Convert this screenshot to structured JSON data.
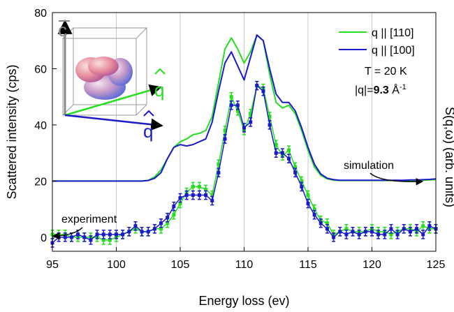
{
  "chart_data": {
    "type": "line",
    "x_label": "Energy loss (ev)",
    "y_label": "Scattered intensity (cps)",
    "y2_label": "S(q,ω) (arb. units)",
    "xlim": [
      95,
      125
    ],
    "ylim": [
      -5,
      80
    ],
    "xticks": [
      95,
      100,
      105,
      110,
      115,
      120,
      125
    ],
    "yticks": [
      0,
      20,
      40,
      60,
      80
    ],
    "grid": true,
    "legend": "upper right",
    "annotations": {
      "simulation": "simulation",
      "experiment": "experiment",
      "temperature": "T = 20 K",
      "q_prefix": "|q|=",
      "q_value": "9.3",
      "q_unit": " Å",
      "q_exp": "-1"
    },
    "inset": {
      "c": "c",
      "q1": "q",
      "q2": "q"
    },
    "x": [
      95,
      95.5,
      96,
      96.5,
      97,
      97.5,
      98,
      98.5,
      99,
      99.5,
      100,
      100.5,
      101,
      101.5,
      102,
      102.5,
      103,
      103.5,
      104,
      104.5,
      105,
      105.5,
      106,
      106.5,
      107,
      107.5,
      108,
      108.5,
      109,
      109.5,
      110,
      110.5,
      111,
      111.5,
      112,
      112.5,
      113,
      113.5,
      114,
      114.5,
      115,
      115.5,
      116,
      116.5,
      117,
      117.5,
      118,
      118.5,
      119,
      119.5,
      120,
      120.5,
      121,
      121.5,
      122,
      122.5,
      123,
      123.5,
      124,
      124.5,
      125
    ],
    "series": [
      {
        "name": "q || [110]",
        "color": "#22e01c",
        "simulation": [
          20,
          20,
          20,
          20,
          20,
          20,
          20,
          20,
          20,
          20,
          20,
          20,
          20,
          20,
          20,
          20.3,
          21.5,
          24,
          28,
          32,
          34,
          35,
          36.5,
          37,
          38,
          43,
          55,
          67,
          71,
          67,
          62,
          66,
          72,
          70,
          58,
          48,
          46,
          47,
          44,
          38,
          31,
          25,
          22,
          20.8,
          20.3,
          20.2,
          20.2,
          20.2,
          20.2,
          20.2,
          20.2,
          20.2,
          20.2,
          20.2,
          20.2,
          20.2,
          20.2,
          20.3,
          20.3,
          20.4,
          20.5
        ],
        "experiment": [
          1,
          1,
          1,
          0,
          0,
          0,
          0,
          0,
          -1,
          -1,
          0,
          1,
          2,
          3,
          2,
          2,
          3,
          3,
          5,
          8,
          12,
          16,
          18,
          18,
          17,
          15,
          26,
          38,
          50,
          45,
          38,
          44,
          54,
          53,
          43,
          33,
          29,
          31,
          25,
          20,
          15,
          10,
          6,
          5,
          1,
          2,
          3,
          2,
          2,
          2,
          3,
          2,
          2,
          1,
          2,
          3,
          3,
          2,
          4,
          3,
          3
        ],
        "errors": [
          1.5,
          1.5,
          1.5,
          1.5,
          1.5,
          1.5,
          1.5,
          1.5,
          1.5,
          1.5,
          1.5,
          1.5,
          1.5,
          1.5,
          1.5,
          1.5,
          1.5,
          1.5,
          1.5,
          1.5,
          1.5,
          1.5,
          1.5,
          1.5,
          1.5,
          1.5,
          1.5,
          1.5,
          1.5,
          1.5,
          1.5,
          1.5,
          1.5,
          1.5,
          1.5,
          1.5,
          1.5,
          1.5,
          1.5,
          1.5,
          1.5,
          1.5,
          1.5,
          1.5,
          1.5,
          1.5,
          1.5,
          1.5,
          1.5,
          1.5,
          1.5,
          1.5,
          1.5,
          1.5,
          1.5,
          1.5,
          1.5,
          1.5,
          1.5,
          1.5,
          1.5
        ]
      },
      {
        "name": "q || [100]",
        "color": "#1a1acc",
        "simulation": [
          20,
          20,
          20,
          20,
          20,
          20,
          20,
          20,
          20,
          20,
          20,
          20,
          20,
          20,
          20,
          20.2,
          21,
          23,
          28,
          32,
          33,
          32.5,
          33,
          34,
          35,
          41,
          52,
          62,
          66,
          61,
          56,
          64,
          72,
          70,
          60,
          51,
          48,
          48,
          45,
          39,
          32,
          26,
          22.5,
          21,
          20.5,
          20.3,
          20.3,
          20.3,
          20.3,
          20.3,
          20.3,
          20.3,
          20.3,
          20.3,
          20.3,
          20.3,
          20.4,
          20.4,
          20.5,
          20.6,
          20.8
        ],
        "experiment": [
          -2,
          0,
          0,
          0,
          1,
          0,
          -1,
          1,
          1,
          1,
          1,
          1,
          2,
          4,
          2,
          2,
          3,
          5,
          7,
          11,
          14,
          15,
          15,
          15,
          15,
          13,
          23,
          35,
          47,
          47,
          39,
          41,
          54,
          52,
          40,
          30,
          30,
          28,
          23,
          18,
          12,
          8,
          5,
          3,
          0,
          2,
          1,
          2,
          1,
          2,
          2,
          1,
          1,
          3,
          1,
          3,
          2,
          3,
          1,
          4,
          3
        ],
        "errors": [
          1.5,
          1.5,
          1.5,
          1.5,
          1.5,
          1.5,
          1.5,
          1.5,
          1.5,
          1.5,
          1.5,
          1.5,
          1.5,
          1.5,
          1.5,
          1.5,
          1.5,
          1.5,
          1.5,
          1.5,
          1.5,
          1.5,
          1.5,
          1.5,
          1.5,
          1.5,
          1.5,
          1.5,
          1.5,
          1.5,
          1.5,
          1.5,
          1.5,
          1.5,
          1.5,
          1.5,
          1.5,
          1.5,
          1.5,
          1.5,
          1.5,
          1.5,
          1.5,
          1.5,
          1.5,
          1.5,
          1.5,
          1.5,
          1.5,
          1.5,
          1.5,
          1.5,
          1.5,
          1.5,
          1.5,
          1.5,
          1.5,
          1.5,
          1.5,
          1.5,
          1.5
        ]
      }
    ]
  }
}
